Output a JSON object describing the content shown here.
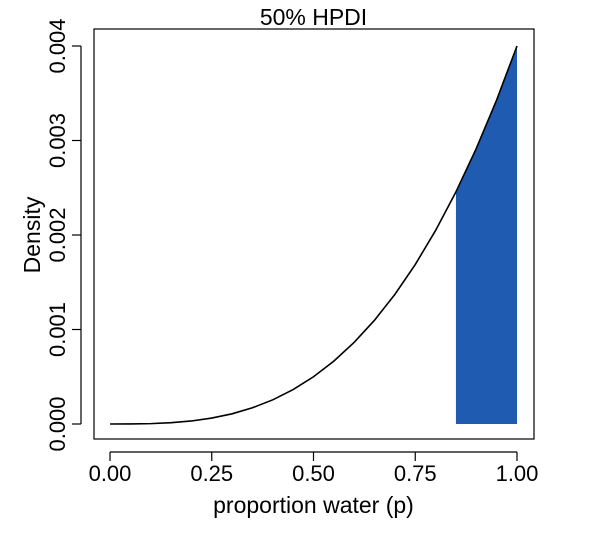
{
  "chart_data": {
    "type": "area",
    "title": "50% HPDI",
    "xlabel": "proportion water (p)",
    "ylabel": "Density",
    "xlim": [
      0,
      1
    ],
    "ylim": [
      0,
      0.004
    ],
    "x_ticks": [
      0.0,
      0.25,
      0.5,
      0.75,
      1.0
    ],
    "x_tick_labels": [
      "0.00",
      "0.25",
      "0.50",
      "0.75",
      "1.00"
    ],
    "y_ticks": [
      0.0,
      0.001,
      0.002,
      0.003,
      0.004
    ],
    "y_tick_labels": [
      "0.000",
      "0.001",
      "0.002",
      "0.003",
      "0.004"
    ],
    "grid": false,
    "series": [
      {
        "x": [
          0.0,
          0.05,
          0.1,
          0.15,
          0.2,
          0.25,
          0.3,
          0.35,
          0.4,
          0.45,
          0.5,
          0.55,
          0.6,
          0.65,
          0.7,
          0.75,
          0.8,
          0.85,
          0.9,
          0.95,
          1.0
        ],
        "values": [
          0.0,
          5e-07,
          4e-06,
          1.35e-05,
          3.2e-05,
          6.25e-05,
          0.000108,
          0.0001715,
          0.000256,
          0.0003645,
          0.0005,
          0.0006655,
          0.000864,
          0.0010985,
          0.001372,
          0.0016875,
          0.002048,
          0.0024565,
          0.002916,
          0.0034295,
          0.004
        ]
      }
    ],
    "shaded_interval": {
      "label": "50% HPDI",
      "x_range": [
        0.85,
        1.0
      ],
      "color": "#1f5bb0"
    },
    "line_color": "#000000"
  }
}
